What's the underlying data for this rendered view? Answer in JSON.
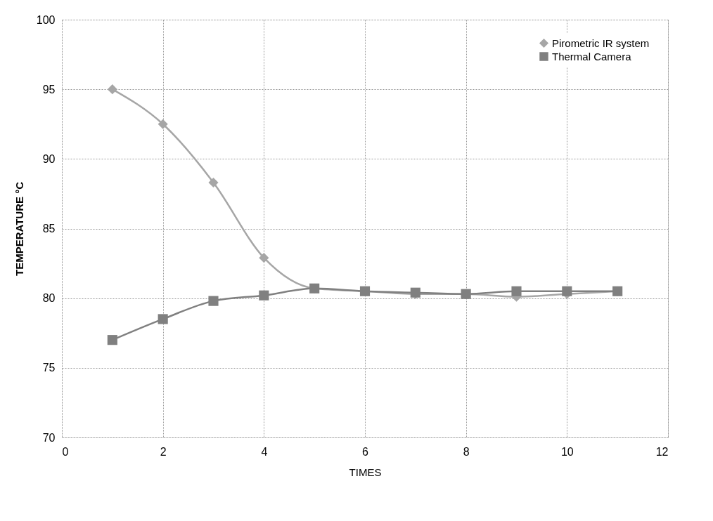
{
  "chart_data": {
    "type": "line",
    "xlabel": "TIMES",
    "ylabel": "TEMPERATURE °C",
    "x": [
      1,
      2,
      3,
      4,
      5,
      6,
      7,
      8,
      9,
      10,
      11
    ],
    "series": [
      {
        "name": "Pirometric IR system",
        "color": "#a6a6a6",
        "marker": "diamond",
        "values": [
          95,
          92.5,
          88.3,
          82.9,
          80.7,
          80.5,
          80.3,
          80.3,
          80.1,
          80.3,
          80.5
        ]
      },
      {
        "name": "Thermal Camera",
        "color": "#808080",
        "marker": "square",
        "values": [
          77,
          78.5,
          79.8,
          80.2,
          80.7,
          80.5,
          80.4,
          80.3,
          80.5,
          80.5,
          80.5
        ]
      }
    ],
    "xlim": [
      0,
      12
    ],
    "xticks": [
      0,
      2,
      4,
      6,
      8,
      10,
      12
    ],
    "ylim": [
      70,
      100
    ],
    "yticks": [
      70,
      75,
      80,
      85,
      90,
      95,
      100
    ],
    "grid": true,
    "legend": "top right",
    "line_style": "solid"
  }
}
